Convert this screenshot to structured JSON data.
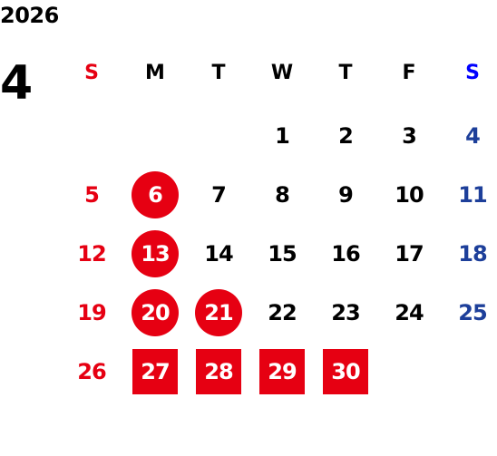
{
  "calendar": {
    "year": "2026",
    "month": "4",
    "weekdays": [
      {
        "label": "S",
        "color": "#e60012"
      },
      {
        "label": "M",
        "color": "#000000"
      },
      {
        "label": "T",
        "color": "#000000"
      },
      {
        "label": "W",
        "color": "#000000"
      },
      {
        "label": "T",
        "color": "#000000"
      },
      {
        "label": "F",
        "color": "#000000"
      },
      {
        "label": "S",
        "color": "#0000ff"
      }
    ],
    "colors": {
      "sunday": "#e60012",
      "saturday": "#1d3f9a",
      "weekday": "#000000",
      "highlight": "#e60012",
      "highlight_text": "#ffffff"
    },
    "weeks": [
      [
        {
          "day": ""
        },
        {
          "day": ""
        },
        {
          "day": ""
        },
        {
          "day": "1"
        },
        {
          "day": "2"
        },
        {
          "day": "3"
        },
        {
          "day": "4"
        }
      ],
      [
        {
          "day": "5"
        },
        {
          "day": "6",
          "mark": "circle"
        },
        {
          "day": "7"
        },
        {
          "day": "8"
        },
        {
          "day": "9"
        },
        {
          "day": "10"
        },
        {
          "day": "11"
        }
      ],
      [
        {
          "day": "12"
        },
        {
          "day": "13",
          "mark": "circle"
        },
        {
          "day": "14"
        },
        {
          "day": "15"
        },
        {
          "day": "16"
        },
        {
          "day": "17"
        },
        {
          "day": "18"
        }
      ],
      [
        {
          "day": "19"
        },
        {
          "day": "20",
          "mark": "circle"
        },
        {
          "day": "21",
          "mark": "circle"
        },
        {
          "day": "22"
        },
        {
          "day": "23"
        },
        {
          "day": "24"
        },
        {
          "day": "25"
        }
      ],
      [
        {
          "day": "26"
        },
        {
          "day": "27",
          "mark": "square"
        },
        {
          "day": "28",
          "mark": "square"
        },
        {
          "day": "29",
          "mark": "square"
        },
        {
          "day": "30",
          "mark": "square"
        },
        {
          "day": ""
        },
        {
          "day": ""
        }
      ]
    ]
  }
}
